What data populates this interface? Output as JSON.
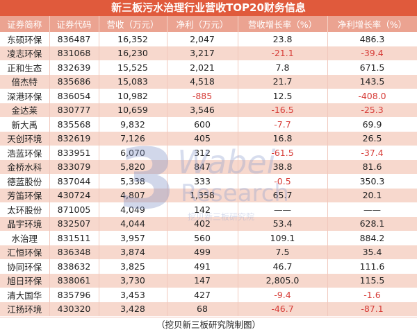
{
  "title": "新三板污水治理行业营收TOP20财务信息",
  "footer": "（挖贝新三板研究院制图）",
  "watermark": {
    "text1": "Wabei",
    "text2": "Research",
    "text3": "挖贝新三板研究院"
  },
  "colors": {
    "title_bg": "#e05a3c",
    "header_bg": "#eba391",
    "stripe": "#f7d8cd",
    "negative": "#d63b36"
  },
  "chart_data": {
    "type": "table",
    "title": "新三板污水治理行业营收TOP20财务信息",
    "columns": [
      "证券简称",
      "证券代码",
      "营收（万元）",
      "净利（万元）",
      "营收增长率（%）",
      "净利增长率（%）"
    ],
    "rows": [
      [
        "东硕环保",
        "836487",
        "16,352",
        "2,047",
        "23.8",
        "486.3"
      ],
      [
        "凌志环保",
        "831068",
        "16,230",
        "3,217",
        "-21.1",
        "-39.4"
      ],
      [
        "正和生态",
        "832639",
        "15,525",
        "2,021",
        "7.8",
        "671.5"
      ],
      [
        "倍杰特",
        "835686",
        "15,083",
        "4,518",
        "21.7",
        "143.5"
      ],
      [
        "深港环保",
        "836054",
        "10,982",
        "-885",
        "12.5",
        "-408.0"
      ],
      [
        "金达莱",
        "830777",
        "10,659",
        "3,546",
        "-16.5",
        "-25.3"
      ],
      [
        "新大禹",
        "835568",
        "9,832",
        "600",
        "-7.7",
        "69.9"
      ],
      [
        "天创环境",
        "832619",
        "7,126",
        "405",
        "16.8",
        "26.5"
      ],
      [
        "浩蓝环保",
        "833951",
        "6,070",
        "312",
        "-61.5",
        "-37.4"
      ],
      [
        "金桥水科",
        "833079",
        "5,820",
        "847",
        "38.8",
        "81.6"
      ],
      [
        "德蓝股份",
        "837044",
        "5,338",
        "333",
        "-0.5",
        "350.3"
      ],
      [
        "芳笛环保",
        "430724",
        "4,807",
        "1,358",
        "65.7",
        "20.1"
      ],
      [
        "太环股份",
        "871005",
        "4,049",
        "142",
        "——",
        "——"
      ],
      [
        "晶宇环境",
        "832507",
        "4,044",
        "402",
        "53.4",
        "628.1"
      ],
      [
        "水治理",
        "831511",
        "3,957",
        "560",
        "109.1",
        "884.2"
      ],
      [
        "汇恒环保",
        "836348",
        "3,874",
        "499",
        "7.5",
        "35.4"
      ],
      [
        "协同环保",
        "838632",
        "3,825",
        "491",
        "46.7",
        "111.6"
      ],
      [
        "旭日环保",
        "838061",
        "3,730",
        "147",
        "2,805.0",
        "115.5"
      ],
      [
        "清大国华",
        "835796",
        "3,453",
        "427",
        "-9.4",
        "-1.6"
      ],
      [
        "江扬环境",
        "430320",
        "3,428",
        "68",
        "-46.7",
        "-87.1"
      ]
    ]
  }
}
